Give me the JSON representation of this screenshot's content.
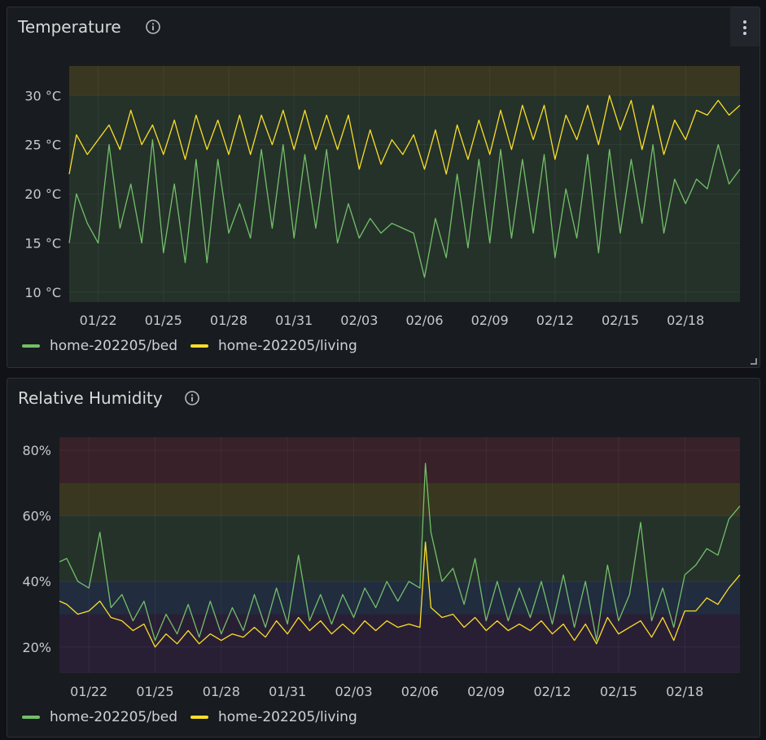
{
  "panels": [
    {
      "title": "Temperature",
      "info_icon": "info-circle-icon",
      "menu_icon": "kebab-menu-icon",
      "legend": [
        {
          "label": "home-202205/bed",
          "color": "#73bf69"
        },
        {
          "label": "home-202205/living",
          "color": "#fade2a"
        }
      ]
    },
    {
      "title": "Relative Humidity",
      "info_icon": "info-circle-icon",
      "legend": [
        {
          "label": "home-202205/bed",
          "color": "#73bf69"
        },
        {
          "label": "home-202205/living",
          "color": "#fade2a"
        }
      ]
    }
  ],
  "chart_data": [
    {
      "type": "line",
      "title": "Temperature",
      "x_range": [
        "2022-01-20T16:00",
        "2022-02-20T12:00"
      ],
      "x_ticks": [
        "01/22",
        "01/25",
        "01/28",
        "01/31",
        "02/03",
        "02/06",
        "02/09",
        "02/12",
        "02/15",
        "02/18"
      ],
      "x_tick_dates": [
        "2022-01-22",
        "2022-01-25",
        "2022-01-28",
        "2022-01-31",
        "2022-02-03",
        "2022-02-06",
        "2022-02-09",
        "2022-02-12",
        "2022-02-15",
        "2022-02-18"
      ],
      "ylim": [
        9,
        33
      ],
      "y_ticks": [
        {
          "value": 10,
          "label": "10 °C"
        },
        {
          "value": 15,
          "label": "15 °C"
        },
        {
          "value": 20,
          "label": "20 °C"
        },
        {
          "value": 25,
          "label": "25 °C"
        },
        {
          "value": 30,
          "label": "30 °C"
        }
      ],
      "thresholds": [
        {
          "from": 9,
          "to": 30,
          "color": "#73bf69"
        },
        {
          "from": 30,
          "to": 33,
          "color": "#fade2a"
        }
      ],
      "grid": true,
      "legend_position": "bottom-left",
      "series": [
        {
          "name": "home-202205/bed",
          "color": "#73bf69",
          "x": [
            "2022-01-20T16:00",
            "2022-01-21T00:00",
            "2022-01-21T12:00",
            "2022-01-22T00:00",
            "2022-01-22T12:00",
            "2022-01-23T00:00",
            "2022-01-23T12:00",
            "2022-01-24T00:00",
            "2022-01-24T12:00",
            "2022-01-25T00:00",
            "2022-01-25T12:00",
            "2022-01-26T00:00",
            "2022-01-26T12:00",
            "2022-01-27T00:00",
            "2022-01-27T12:00",
            "2022-01-28T00:00",
            "2022-01-28T12:00",
            "2022-01-29T00:00",
            "2022-01-29T12:00",
            "2022-01-30T00:00",
            "2022-01-30T12:00",
            "2022-01-31T00:00",
            "2022-01-31T12:00",
            "2022-02-01T00:00",
            "2022-02-01T12:00",
            "2022-02-02T00:00",
            "2022-02-02T12:00",
            "2022-02-03T00:00",
            "2022-02-03T12:00",
            "2022-02-04T00:00",
            "2022-02-04T12:00",
            "2022-02-05T00:00",
            "2022-02-05T12:00",
            "2022-02-06T00:00",
            "2022-02-06T12:00",
            "2022-02-07T00:00",
            "2022-02-07T12:00",
            "2022-02-08T00:00",
            "2022-02-08T12:00",
            "2022-02-09T00:00",
            "2022-02-09T12:00",
            "2022-02-10T00:00",
            "2022-02-10T12:00",
            "2022-02-11T00:00",
            "2022-02-11T12:00",
            "2022-02-12T00:00",
            "2022-02-12T12:00",
            "2022-02-13T00:00",
            "2022-02-13T12:00",
            "2022-02-14T00:00",
            "2022-02-14T12:00",
            "2022-02-15T00:00",
            "2022-02-15T12:00",
            "2022-02-16T00:00",
            "2022-02-16T12:00",
            "2022-02-17T00:00",
            "2022-02-17T12:00",
            "2022-02-18T00:00",
            "2022-02-18T12:00",
            "2022-02-19T00:00",
            "2022-02-19T12:00",
            "2022-02-20T00:00",
            "2022-02-20T12:00"
          ],
          "values": [
            15.0,
            20.0,
            17.0,
            15.0,
            25.0,
            16.5,
            21.0,
            15.0,
            25.5,
            14.0,
            21.0,
            13.0,
            23.5,
            13.0,
            23.5,
            16.0,
            19.0,
            15.5,
            24.5,
            16.5,
            25.0,
            15.5,
            24.0,
            16.5,
            24.5,
            15.0,
            19.0,
            15.5,
            17.5,
            16.0,
            17.0,
            16.5,
            16.0,
            11.5,
            17.5,
            13.5,
            22.0,
            14.5,
            23.5,
            15.0,
            24.5,
            15.5,
            23.5,
            16.0,
            24.0,
            13.5,
            20.5,
            15.5,
            24.0,
            14.0,
            24.5,
            16.0,
            23.5,
            17.0,
            25.0,
            16.0,
            21.5,
            19.0,
            21.5,
            20.5,
            25.0,
            21.0,
            22.5
          ]
        },
        {
          "name": "home-202205/living",
          "color": "#fade2a",
          "x": [
            "2022-01-20T16:00",
            "2022-01-21T00:00",
            "2022-01-21T12:00",
            "2022-01-22T00:00",
            "2022-01-22T12:00",
            "2022-01-23T00:00",
            "2022-01-23T12:00",
            "2022-01-24T00:00",
            "2022-01-24T12:00",
            "2022-01-25T00:00",
            "2022-01-25T12:00",
            "2022-01-26T00:00",
            "2022-01-26T12:00",
            "2022-01-27T00:00",
            "2022-01-27T12:00",
            "2022-01-28T00:00",
            "2022-01-28T12:00",
            "2022-01-29T00:00",
            "2022-01-29T12:00",
            "2022-01-30T00:00",
            "2022-01-30T12:00",
            "2022-01-31T00:00",
            "2022-01-31T12:00",
            "2022-02-01T00:00",
            "2022-02-01T12:00",
            "2022-02-02T00:00",
            "2022-02-02T12:00",
            "2022-02-03T00:00",
            "2022-02-03T12:00",
            "2022-02-04T00:00",
            "2022-02-04T12:00",
            "2022-02-05T00:00",
            "2022-02-05T12:00",
            "2022-02-06T00:00",
            "2022-02-06T12:00",
            "2022-02-07T00:00",
            "2022-02-07T12:00",
            "2022-02-08T00:00",
            "2022-02-08T12:00",
            "2022-02-09T00:00",
            "2022-02-09T12:00",
            "2022-02-10T00:00",
            "2022-02-10T12:00",
            "2022-02-11T00:00",
            "2022-02-11T12:00",
            "2022-02-12T00:00",
            "2022-02-12T12:00",
            "2022-02-13T00:00",
            "2022-02-13T12:00",
            "2022-02-14T00:00",
            "2022-02-14T12:00",
            "2022-02-15T00:00",
            "2022-02-15T12:00",
            "2022-02-16T00:00",
            "2022-02-16T12:00",
            "2022-02-17T00:00",
            "2022-02-17T12:00",
            "2022-02-18T00:00",
            "2022-02-18T12:00",
            "2022-02-19T00:00",
            "2022-02-19T12:00",
            "2022-02-20T00:00",
            "2022-02-20T12:00"
          ],
          "values": [
            22.0,
            26.0,
            24.0,
            25.5,
            27.0,
            24.5,
            28.5,
            25.0,
            27.0,
            24.0,
            27.5,
            23.5,
            28.0,
            24.5,
            27.5,
            24.0,
            28.0,
            24.0,
            28.0,
            25.0,
            28.5,
            24.5,
            28.5,
            24.5,
            28.0,
            24.5,
            28.0,
            22.5,
            26.5,
            23.0,
            25.5,
            24.0,
            26.0,
            22.5,
            26.5,
            22.0,
            27.0,
            23.5,
            27.5,
            24.0,
            28.5,
            24.5,
            29.0,
            25.5,
            29.0,
            23.5,
            28.0,
            25.5,
            29.0,
            25.0,
            30.0,
            26.5,
            29.5,
            24.5,
            29.0,
            24.0,
            27.5,
            25.5,
            28.5,
            28.0,
            29.5,
            28.0,
            29.0
          ]
        }
      ]
    },
    {
      "type": "line",
      "title": "Relative Humidity",
      "x_range": [
        "2022-01-20T16:00",
        "2022-02-20T12:00"
      ],
      "x_ticks": [
        "01/22",
        "01/25",
        "01/28",
        "01/31",
        "02/03",
        "02/06",
        "02/09",
        "02/12",
        "02/15",
        "02/18"
      ],
      "x_tick_dates": [
        "2022-01-22",
        "2022-01-25",
        "2022-01-28",
        "2022-01-31",
        "2022-02-03",
        "2022-02-06",
        "2022-02-09",
        "2022-02-12",
        "2022-02-15",
        "2022-02-18"
      ],
      "ylim": [
        12,
        84
      ],
      "y_ticks": [
        {
          "value": 20,
          "label": "20%"
        },
        {
          "value": 40,
          "label": "40%"
        },
        {
          "value": 60,
          "label": "60%"
        },
        {
          "value": 80,
          "label": "80%"
        }
      ],
      "thresholds": [
        {
          "from": 12,
          "to": 30,
          "color": "#8f3bb8"
        },
        {
          "from": 30,
          "to": 40,
          "color": "#5794f2"
        },
        {
          "from": 40,
          "to": 60,
          "color": "#73bf69"
        },
        {
          "from": 60,
          "to": 70,
          "color": "#fade2a"
        },
        {
          "from": 70,
          "to": 84,
          "color": "#f2495c"
        }
      ],
      "grid": true,
      "legend_position": "bottom-left",
      "series": [
        {
          "name": "home-202205/bed",
          "color": "#73bf69",
          "x": [
            "2022-01-20T16:00",
            "2022-01-21T00:00",
            "2022-01-21T12:00",
            "2022-01-22T00:00",
            "2022-01-22T12:00",
            "2022-01-23T00:00",
            "2022-01-23T12:00",
            "2022-01-24T00:00",
            "2022-01-24T12:00",
            "2022-01-25T00:00",
            "2022-01-25T12:00",
            "2022-01-26T00:00",
            "2022-01-26T12:00",
            "2022-01-27T00:00",
            "2022-01-27T12:00",
            "2022-01-28T00:00",
            "2022-01-28T12:00",
            "2022-01-29T00:00",
            "2022-01-29T12:00",
            "2022-01-30T00:00",
            "2022-01-30T12:00",
            "2022-01-31T00:00",
            "2022-01-31T12:00",
            "2022-02-01T00:00",
            "2022-02-01T12:00",
            "2022-02-02T00:00",
            "2022-02-02T12:00",
            "2022-02-03T00:00",
            "2022-02-03T12:00",
            "2022-02-04T00:00",
            "2022-02-04T12:00",
            "2022-02-05T00:00",
            "2022-02-05T12:00",
            "2022-02-06T00:00",
            "2022-02-06T06:00",
            "2022-02-06T12:00",
            "2022-02-07T00:00",
            "2022-02-07T12:00",
            "2022-02-08T00:00",
            "2022-02-08T12:00",
            "2022-02-09T00:00",
            "2022-02-09T12:00",
            "2022-02-10T00:00",
            "2022-02-10T12:00",
            "2022-02-11T00:00",
            "2022-02-11T12:00",
            "2022-02-12T00:00",
            "2022-02-12T12:00",
            "2022-02-13T00:00",
            "2022-02-13T12:00",
            "2022-02-14T00:00",
            "2022-02-14T12:00",
            "2022-02-15T00:00",
            "2022-02-15T12:00",
            "2022-02-16T00:00",
            "2022-02-16T12:00",
            "2022-02-17T00:00",
            "2022-02-17T12:00",
            "2022-02-18T00:00",
            "2022-02-18T12:00",
            "2022-02-19T00:00",
            "2022-02-19T12:00",
            "2022-02-20T00:00",
            "2022-02-20T12:00"
          ],
          "values": [
            46,
            47,
            40,
            38,
            55,
            32,
            36,
            28,
            34,
            22,
            30,
            24,
            33,
            23,
            34,
            24,
            32,
            25,
            36,
            26,
            38,
            27,
            48,
            28,
            36,
            27,
            36,
            29,
            38,
            32,
            40,
            34,
            40,
            38,
            76,
            55,
            40,
            44,
            33,
            47,
            28,
            40,
            28,
            38,
            29,
            40,
            27,
            42,
            26,
            40,
            22,
            45,
            28,
            36,
            58,
            28,
            38,
            26,
            42,
            45,
            50,
            48,
            59,
            63
          ]
        },
        {
          "name": "home-202205/living",
          "color": "#fade2a",
          "x": [
            "2022-01-20T16:00",
            "2022-01-21T00:00",
            "2022-01-21T12:00",
            "2022-01-22T00:00",
            "2022-01-22T12:00",
            "2022-01-23T00:00",
            "2022-01-23T12:00",
            "2022-01-24T00:00",
            "2022-01-24T12:00",
            "2022-01-25T00:00",
            "2022-01-25T12:00",
            "2022-01-26T00:00",
            "2022-01-26T12:00",
            "2022-01-27T00:00",
            "2022-01-27T12:00",
            "2022-01-28T00:00",
            "2022-01-28T12:00",
            "2022-01-29T00:00",
            "2022-01-29T12:00",
            "2022-01-30T00:00",
            "2022-01-30T12:00",
            "2022-01-31T00:00",
            "2022-01-31T12:00",
            "2022-02-01T00:00",
            "2022-02-01T12:00",
            "2022-02-02T00:00",
            "2022-02-02T12:00",
            "2022-02-03T00:00",
            "2022-02-03T12:00",
            "2022-02-04T00:00",
            "2022-02-04T12:00",
            "2022-02-05T00:00",
            "2022-02-05T12:00",
            "2022-02-06T00:00",
            "2022-02-06T06:00",
            "2022-02-06T12:00",
            "2022-02-07T00:00",
            "2022-02-07T12:00",
            "2022-02-08T00:00",
            "2022-02-08T12:00",
            "2022-02-09T00:00",
            "2022-02-09T12:00",
            "2022-02-10T00:00",
            "2022-02-10T12:00",
            "2022-02-11T00:00",
            "2022-02-11T12:00",
            "2022-02-12T00:00",
            "2022-02-12T12:00",
            "2022-02-13T00:00",
            "2022-02-13T12:00",
            "2022-02-14T00:00",
            "2022-02-14T12:00",
            "2022-02-15T00:00",
            "2022-02-15T12:00",
            "2022-02-16T00:00",
            "2022-02-16T12:00",
            "2022-02-17T00:00",
            "2022-02-17T12:00",
            "2022-02-18T00:00",
            "2022-02-18T12:00",
            "2022-02-19T00:00",
            "2022-02-19T12:00",
            "2022-02-20T00:00",
            "2022-02-20T12:00"
          ],
          "values": [
            34,
            33,
            30,
            31,
            34,
            29,
            28,
            25,
            27,
            20,
            24,
            21,
            25,
            21,
            24,
            22,
            24,
            23,
            26,
            23,
            28,
            24,
            29,
            25,
            28,
            24,
            27,
            24,
            28,
            25,
            28,
            26,
            27,
            26,
            52,
            32,
            29,
            30,
            26,
            29,
            25,
            28,
            25,
            27,
            25,
            28,
            24,
            27,
            22,
            27,
            21,
            29,
            24,
            26,
            28,
            23,
            29,
            22,
            31,
            31,
            35,
            33,
            38,
            42
          ]
        }
      ]
    }
  ]
}
